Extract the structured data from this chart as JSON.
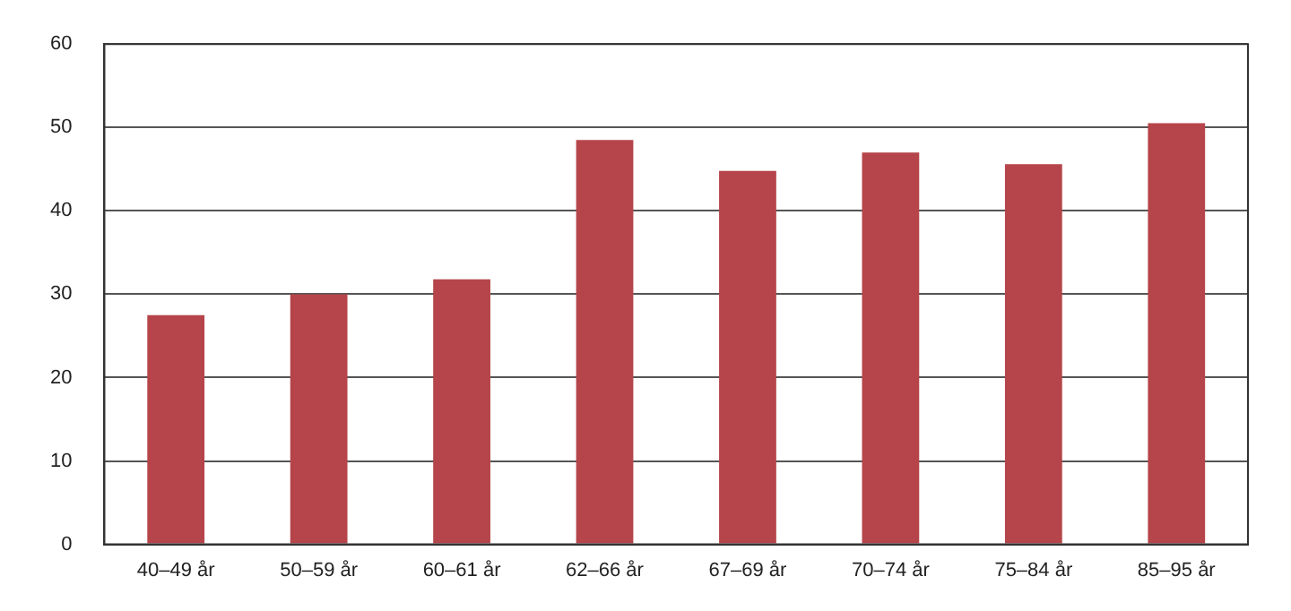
{
  "chart_data": {
    "type": "bar",
    "categories": [
      "40–49 år",
      "50–59 år",
      "60–61 år",
      "62–66 år",
      "67–69 år",
      "70–74 år",
      "75–84 år",
      "85–95 år"
    ],
    "values": [
      27.5,
      30,
      31.8,
      48.5,
      44.8,
      47,
      45.6,
      50.5
    ],
    "color": "#b5454a",
    "ylim": [
      0,
      60
    ],
    "yticks": [
      0,
      10,
      20,
      30,
      40,
      50,
      60
    ],
    "grid": "y",
    "legend": false
  }
}
